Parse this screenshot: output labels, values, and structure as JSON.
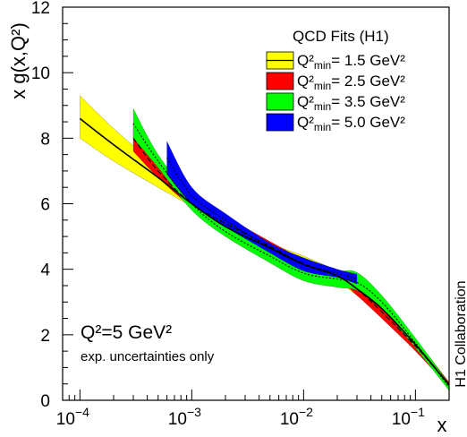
{
  "chart_data": {
    "type": "area",
    "xscale": "log",
    "xlim": [
      7e-05,
      0.2
    ],
    "ylim": [
      0,
      12
    ],
    "xlabel": "x",
    "ylabel": "x g(x,Q²)",
    "x_ticks": [
      {
        "value": 0.0001,
        "base": "10",
        "exp": "−4"
      },
      {
        "value": 0.001,
        "base": "10",
        "exp": "−3"
      },
      {
        "value": 0.01,
        "base": "10",
        "exp": "−2"
      },
      {
        "value": 0.1,
        "base": "10",
        "exp": "−1"
      }
    ],
    "y_ticks": [
      0,
      2,
      4,
      6,
      8,
      10,
      12
    ],
    "legend": {
      "title": "QCD Fits (H1)",
      "position": "top-right",
      "entries": [
        {
          "q2_label": "Q²",
          "sub": "min",
          "value": "=  1.5 GeV²"
        },
        {
          "q2_label": "Q²",
          "sub": "min",
          "value": "=  2.5 GeV²"
        },
        {
          "q2_label": "Q²",
          "sub": "min",
          "value": "=  3.5 GeV²"
        },
        {
          "q2_label": "Q²",
          "sub": "min",
          "value": "=  5.0 GeV²"
        }
      ]
    },
    "annotation": {
      "scale_text": "Q²=5 GeV²",
      "note": "exp. uncertainties only",
      "collaboration": "H1 Collaboration"
    },
    "colors": {
      "yellow": "#ffff00",
      "red": "#ff0000",
      "green": "#00ff00",
      "blue": "#0000ff"
    },
    "series": [
      {
        "fill": "#ffff00",
        "line_style": "solid",
        "x": [
          0.0001,
          0.0002,
          0.0005,
          0.001,
          0.002,
          0.005,
          0.01,
          0.02,
          0.03,
          0.05,
          0.1,
          0.2
        ],
        "lower": [
          8.0,
          7.3,
          6.5,
          5.9,
          5.1,
          4.5,
          3.9,
          3.6,
          3.2,
          2.6,
          1.6,
          0.4
        ],
        "upper": [
          9.3,
          8.3,
          7.1,
          6.1,
          5.5,
          4.8,
          4.4,
          3.95,
          3.6,
          2.95,
          1.85,
          0.55
        ],
        "central": [
          8.6,
          7.8,
          6.8,
          6.0,
          5.3,
          4.65,
          4.15,
          3.8,
          3.4,
          2.8,
          1.7,
          0.47
        ]
      },
      {
        "fill": "#ff0000",
        "line_style": "dashed",
        "x": [
          0.0003,
          0.0005,
          0.001,
          0.002,
          0.005,
          0.01,
          0.02,
          0.03,
          0.05,
          0.1,
          0.2
        ],
        "lower": [
          7.6,
          6.8,
          5.9,
          5.2,
          4.6,
          4.05,
          3.7,
          3.2,
          2.5,
          1.5,
          0.4
        ],
        "upper": [
          8.4,
          7.2,
          6.1,
          5.6,
          4.85,
          4.3,
          3.9,
          3.55,
          2.85,
          1.8,
          0.55
        ],
        "central": [
          8.0,
          7.0,
          6.0,
          5.4,
          4.7,
          4.17,
          3.8,
          3.4,
          2.7,
          1.65,
          0.47
        ]
      },
      {
        "fill": "#00ff00",
        "line_style": "dotted",
        "x": [
          0.0003,
          0.0005,
          0.001,
          0.002,
          0.005,
          0.01,
          0.02,
          0.03,
          0.05,
          0.1,
          0.2
        ],
        "lower": [
          8.0,
          7.1,
          5.8,
          5.0,
          4.2,
          3.65,
          3.45,
          3.35,
          2.8,
          1.6,
          0.3
        ],
        "upper": [
          8.9,
          7.5,
          6.2,
          5.3,
          4.6,
          4.1,
          3.95,
          3.9,
          3.2,
          1.9,
          0.5
        ],
        "central": [
          8.45,
          7.3,
          6.0,
          5.15,
          4.4,
          3.88,
          3.7,
          3.6,
          3.0,
          1.75,
          0.4
        ]
      },
      {
        "fill": "#0000ff",
        "line_style": "dotted",
        "x": [
          0.0006,
          0.001,
          0.002,
          0.005,
          0.01,
          0.02,
          0.03
        ],
        "lower": [
          6.9,
          6.0,
          5.3,
          4.5,
          3.95,
          3.75,
          3.55
        ],
        "upper": [
          7.9,
          6.5,
          5.7,
          4.8,
          4.35,
          4.0,
          3.85
        ],
        "central": [
          7.4,
          6.25,
          5.5,
          4.65,
          4.15,
          3.88,
          3.7
        ]
      }
    ]
  }
}
